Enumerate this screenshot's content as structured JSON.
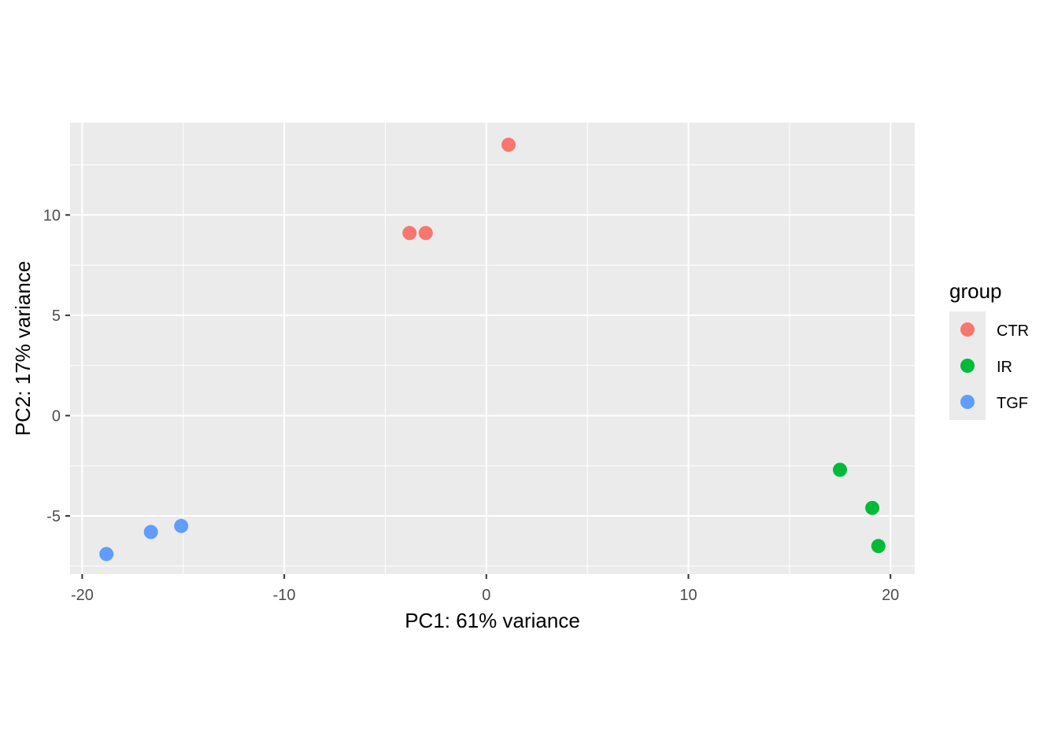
{
  "chart_data": {
    "type": "scatter",
    "title": "",
    "xlabel": "PC1: 61% variance",
    "ylabel": "PC2: 17% variance",
    "xlim": [
      -20.6,
      21.2
    ],
    "ylim": [
      -7.9,
      14.6
    ],
    "x_ticks": [
      -20,
      -10,
      0,
      10,
      20
    ],
    "x_tick_labels": [
      "-20",
      "-10",
      "0",
      "10",
      "20"
    ],
    "y_ticks": [
      -5,
      0,
      5,
      10
    ],
    "y_tick_labels": [
      "-5",
      "0",
      "5",
      "10"
    ],
    "grid": true,
    "panel_background": "#ebebeb",
    "legend": {
      "title": "group",
      "position": "right"
    },
    "series": [
      {
        "name": "CTR",
        "color": "#f8766d",
        "points": [
          {
            "x": -3.8,
            "y": 9.1
          },
          {
            "x": -3.0,
            "y": 9.1
          },
          {
            "x": 1.1,
            "y": 13.5
          }
        ]
      },
      {
        "name": "IR",
        "color": "#00ba38",
        "points": [
          {
            "x": 17.5,
            "y": -2.7
          },
          {
            "x": 19.1,
            "y": -4.6
          },
          {
            "x": 19.4,
            "y": -6.5
          }
        ]
      },
      {
        "name": "TGF",
        "color": "#619cff",
        "points": [
          {
            "x": -18.8,
            "y": -6.9
          },
          {
            "x": -16.6,
            "y": -5.8
          },
          {
            "x": -15.1,
            "y": -5.5
          }
        ]
      }
    ]
  }
}
